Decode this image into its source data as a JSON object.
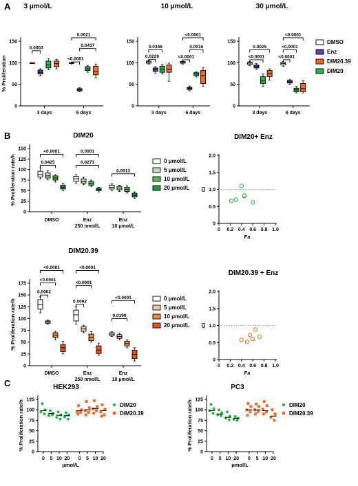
{
  "panel_labels": [
    "A",
    "B",
    "C"
  ],
  "legend_A": [
    {
      "label": "DMSO",
      "color": "#ffffff"
    },
    {
      "label": "Enz",
      "color": "#6a3fa6"
    },
    {
      "label": "DIM20.39",
      "color": "#f26b2b"
    },
    {
      "label": "DIM20",
      "color": "#2bb34b"
    }
  ],
  "legend_B1": [
    {
      "label": "0 μmol/L",
      "color": "#ffffff"
    },
    {
      "label": "5 μmol/L",
      "color": "#b7e4b2"
    },
    {
      "label": "10 μmol/L",
      "color": "#58b957"
    },
    {
      "label": "20 μmol/L",
      "color": "#1a9c3a"
    }
  ],
  "legend_B2": [
    {
      "label": "0 μmol/L",
      "color": "#ffffff"
    },
    {
      "label": "5 μmol/L",
      "color": "#f8c7a6"
    },
    {
      "label": "10 μmol/L",
      "color": "#f08a3c"
    },
    {
      "label": "20 μmol/L",
      "color": "#e8541c"
    }
  ],
  "legend_C": [
    {
      "label": "DIM20",
      "color": "#2bb34b"
    },
    {
      "label": "DIM20.39",
      "color": "#f26b2b"
    }
  ],
  "chart_data": [
    {
      "id": "A1",
      "type": "box",
      "title": "3 μmol/L",
      "ylabel": "% Proliferation",
      "ylim": [
        0,
        150
      ],
      "yticks": [
        0,
        50,
        100,
        150
      ],
      "categories": [
        "3 days",
        "6 days"
      ],
      "series": [
        "DMSO",
        "Enz",
        "DIM20",
        "DIM20.39"
      ],
      "boxes": [
        {
          "g": 0,
          "s": 0,
          "min": 100,
          "q1": 100,
          "med": 100,
          "q3": 100,
          "max": 100
        },
        {
          "g": 0,
          "s": 1,
          "min": 70,
          "q1": 74,
          "med": 78,
          "q3": 83,
          "max": 86
        },
        {
          "g": 0,
          "s": 2,
          "min": 84,
          "q1": 88,
          "med": 95,
          "q3": 104,
          "max": 109
        },
        {
          "g": 0,
          "s": 3,
          "min": 86,
          "q1": 91,
          "med": 98,
          "q3": 104,
          "max": 108
        },
        {
          "g": 1,
          "s": 0,
          "min": 100,
          "q1": 100,
          "med": 100,
          "q3": 100,
          "max": 100
        },
        {
          "g": 1,
          "s": 1,
          "min": 33,
          "q1": 35,
          "med": 38,
          "q3": 40,
          "max": 42
        },
        {
          "g": 1,
          "s": 2,
          "min": 78,
          "q1": 82,
          "med": 86,
          "q3": 91,
          "max": 94
        },
        {
          "g": 1,
          "s": 3,
          "min": 65,
          "q1": 72,
          "med": 80,
          "q3": 92,
          "max": 97
        }
      ],
      "brackets": [
        {
          "x1": 0,
          "x2": 1,
          "y": 128,
          "label": "0.0003"
        },
        {
          "x1": 4,
          "x2": 5,
          "y": 102,
          "label": "<0.0001"
        },
        {
          "x1": 5,
          "x2": 7,
          "y": 133,
          "label": "0.0437"
        },
        {
          "x1": 4,
          "x2": 7,
          "y": 158,
          "label": "0.0021"
        }
      ]
    },
    {
      "id": "A2",
      "type": "box",
      "title": "10 μmol/L",
      "ylabel": "",
      "ylim": [
        0,
        150
      ],
      "yticks": [
        0,
        50,
        100,
        150
      ],
      "categories": [
        "3 days",
        "6 days"
      ],
      "series": [
        "DMSO",
        "Enz",
        "DIM20",
        "DIM20.39"
      ],
      "boxes": [
        {
          "g": 0,
          "s": 0,
          "min": 97,
          "q1": 99,
          "med": 102,
          "q3": 104,
          "max": 106
        },
        {
          "g": 0,
          "s": 1,
          "min": 76,
          "q1": 80,
          "med": 85,
          "q3": 88,
          "max": 91
        },
        {
          "g": 0,
          "s": 2,
          "min": 74,
          "q1": 78,
          "med": 85,
          "q3": 92,
          "max": 96
        },
        {
          "g": 0,
          "s": 3,
          "min": 57,
          "q1": 78,
          "med": 85,
          "q3": 95,
          "max": 99
        },
        {
          "g": 1,
          "s": 0,
          "min": 97,
          "q1": 99,
          "med": 101,
          "q3": 103,
          "max": 104
        },
        {
          "g": 1,
          "s": 1,
          "min": 35,
          "q1": 38,
          "med": 41,
          "q3": 43,
          "max": 46
        },
        {
          "g": 1,
          "s": 2,
          "min": 67,
          "q1": 70,
          "med": 74,
          "q3": 77,
          "max": 79
        },
        {
          "g": 1,
          "s": 3,
          "min": 45,
          "q1": 52,
          "med": 70,
          "q3": 82,
          "max": 88
        }
      ],
      "brackets": [
        {
          "x1": 0,
          "x2": 1,
          "y": 108,
          "label": "0.0229"
        },
        {
          "x1": 0,
          "x2": 2,
          "y": 130,
          "label": "0.0346"
        },
        {
          "x1": 4,
          "x2": 5,
          "y": 107,
          "label": "<0.0001"
        },
        {
          "x1": 5,
          "x2": 7,
          "y": 130,
          "label": "0.0016"
        },
        {
          "x1": 4,
          "x2": 7,
          "y": 158,
          "label": "<0.0001"
        }
      ]
    },
    {
      "id": "A3",
      "type": "box",
      "title": "30 μmol/L",
      "ylabel": "",
      "ylim": [
        0,
        150
      ],
      "yticks": [
        0,
        50,
        100,
        150
      ],
      "categories": [
        "3 days",
        "6 days"
      ],
      "series": [
        "DMSO",
        "Enz",
        "DIM20",
        "DIM20.39"
      ],
      "boxes": [
        {
          "g": 0,
          "s": 0,
          "min": 93,
          "q1": 96,
          "med": 99,
          "q3": 101,
          "max": 103
        },
        {
          "g": 0,
          "s": 1,
          "min": 85,
          "q1": 88,
          "med": 92,
          "q3": 95,
          "max": 98
        },
        {
          "g": 0,
          "s": 2,
          "min": 45,
          "q1": 52,
          "med": 58,
          "q3": 68,
          "max": 74
        },
        {
          "g": 0,
          "s": 3,
          "min": 60,
          "q1": 68,
          "med": 75,
          "q3": 82,
          "max": 86
        },
        {
          "g": 1,
          "s": 0,
          "min": 92,
          "q1": 95,
          "med": 98,
          "q3": 101,
          "max": 103
        },
        {
          "g": 1,
          "s": 1,
          "min": 50,
          "q1": 53,
          "med": 56,
          "q3": 59,
          "max": 61
        },
        {
          "g": 1,
          "s": 2,
          "min": 30,
          "q1": 33,
          "med": 37,
          "q3": 41,
          "max": 45
        },
        {
          "g": 1,
          "s": 3,
          "min": 30,
          "q1": 33,
          "med": 40,
          "q3": 52,
          "max": 58
        }
      ],
      "brackets": [
        {
          "x1": 0,
          "x2": 2,
          "y": 107,
          "label": "<0.0001"
        },
        {
          "x1": 0,
          "x2": 3,
          "y": 130,
          "label": "0.0025"
        },
        {
          "x1": 4,
          "x2": 5,
          "y": 107,
          "label": "<0.0001"
        },
        {
          "x1": 4,
          "x2": 6,
          "y": 130,
          "label": "<0.0001"
        },
        {
          "x1": 4,
          "x2": 7,
          "y": 158,
          "label": "<0.0001"
        }
      ]
    },
    {
      "id": "B1",
      "type": "box",
      "title": "DIM20",
      "ylabel": "% Proliferation rate/h",
      "ylim": [
        0,
        150
      ],
      "yticks": [
        0,
        25,
        50,
        75,
        100,
        125,
        150
      ],
      "categories": [
        "DMSO",
        "Enz\n250 nmol/L",
        "Enz\n10 μmol/L"
      ],
      "series": [
        "0 μmol/L",
        "5 μmol/L",
        "10 μmol/L",
        "20 μmol/L"
      ],
      "boxes": [
        {
          "g": 0,
          "s": 0,
          "min": 78,
          "q1": 82,
          "med": 88,
          "q3": 96,
          "max": 104
        },
        {
          "g": 0,
          "s": 1,
          "min": 76,
          "q1": 80,
          "med": 85,
          "q3": 92,
          "max": 97
        },
        {
          "g": 0,
          "s": 2,
          "min": 70,
          "q1": 75,
          "med": 80,
          "q3": 85,
          "max": 88
        },
        {
          "g": 0,
          "s": 3,
          "min": 50,
          "q1": 54,
          "med": 58,
          "q3": 63,
          "max": 68
        },
        {
          "g": 1,
          "s": 0,
          "min": 68,
          "q1": 72,
          "med": 78,
          "q3": 84,
          "max": 88
        },
        {
          "g": 1,
          "s": 1,
          "min": 64,
          "q1": 68,
          "med": 72,
          "q3": 78,
          "max": 82
        },
        {
          "g": 1,
          "s": 2,
          "min": 60,
          "q1": 63,
          "med": 67,
          "q3": 72,
          "max": 75
        },
        {
          "g": 1,
          "s": 3,
          "min": 47,
          "q1": 50,
          "med": 53,
          "q3": 56,
          "max": 58
        },
        {
          "g": 2,
          "s": 0,
          "min": 50,
          "q1": 54,
          "med": 58,
          "q3": 63,
          "max": 66
        },
        {
          "g": 2,
          "s": 1,
          "min": 48,
          "q1": 52,
          "med": 56,
          "q3": 60,
          "max": 63
        },
        {
          "g": 2,
          "s": 2,
          "min": 44,
          "q1": 48,
          "med": 53,
          "q3": 58,
          "max": 62
        },
        {
          "g": 2,
          "s": 3,
          "min": 32,
          "q1": 35,
          "med": 39,
          "q3": 44,
          "max": 47
        }
      ],
      "brackets": [
        {
          "x1": 0,
          "x2": 2,
          "y": 110,
          "label": "0.0425"
        },
        {
          "x1": 0,
          "x2": 3,
          "y": 136,
          "label": "<0.0001"
        },
        {
          "x1": 4,
          "x2": 7,
          "y": 110,
          "label": "0.0273"
        },
        {
          "x1": 4,
          "x2": 7,
          "y": 136,
          "label": "0.0001"
        },
        {
          "x1": 8,
          "x2": 11,
          "y": 90,
          "label": "0.0013"
        }
      ]
    },
    {
      "id": "B2",
      "type": "box",
      "title": "DIM20.39",
      "ylabel": "% Proliferation rate/h",
      "ylim": [
        0,
        175
      ],
      "yticks": [
        0,
        25,
        50,
        75,
        100,
        125,
        150,
        175
      ],
      "categories": [
        "DMSO",
        "Enz\n250 nmol/L",
        "Enz\n10 μmol/L"
      ],
      "series": [
        "0 μmol/L",
        "5 μmol/L",
        "10 μmol/L",
        "20 μmol/L"
      ],
      "boxes": [
        {
          "g": 0,
          "s": 0,
          "min": 112,
          "q1": 120,
          "med": 130,
          "q3": 140,
          "max": 146
        },
        {
          "g": 0,
          "s": 1,
          "min": 88,
          "q1": 90,
          "med": 93,
          "q3": 95,
          "max": 97
        },
        {
          "g": 0,
          "s": 2,
          "min": 55,
          "q1": 60,
          "med": 65,
          "q3": 70,
          "max": 73
        },
        {
          "g": 0,
          "s": 3,
          "min": 25,
          "q1": 30,
          "med": 38,
          "q3": 45,
          "max": 52
        },
        {
          "g": 1,
          "s": 0,
          "min": 88,
          "q1": 95,
          "med": 108,
          "q3": 118,
          "max": 125
        },
        {
          "g": 1,
          "s": 1,
          "min": 70,
          "q1": 73,
          "med": 78,
          "q3": 83,
          "max": 86
        },
        {
          "g": 1,
          "s": 2,
          "min": 50,
          "q1": 53,
          "med": 60,
          "q3": 67,
          "max": 72
        },
        {
          "g": 1,
          "s": 3,
          "min": 22,
          "q1": 26,
          "med": 33,
          "q3": 42,
          "max": 48
        },
        {
          "g": 2,
          "s": 0,
          "min": 62,
          "q1": 64,
          "med": 67,
          "q3": 70,
          "max": 72
        },
        {
          "g": 2,
          "s": 1,
          "min": 55,
          "q1": 58,
          "med": 62,
          "q3": 66,
          "max": 69
        },
        {
          "g": 2,
          "s": 2,
          "min": 38,
          "q1": 42,
          "med": 47,
          "q3": 52,
          "max": 55
        },
        {
          "g": 2,
          "s": 3,
          "min": 10,
          "q1": 15,
          "med": 24,
          "q3": 33,
          "max": 38
        }
      ],
      "brackets": [
        {
          "x1": 0,
          "x2": 1,
          "y": 150,
          "label": "0.0002"
        },
        {
          "x1": 0,
          "x2": 2,
          "y": 176,
          "label": "<0.0001"
        },
        {
          "x1": 0,
          "x2": 3,
          "y": 202,
          "label": "<0.0001"
        },
        {
          "x1": 4,
          "x2": 5,
          "y": 130,
          "label": "0.0092"
        },
        {
          "x1": 4,
          "x2": 6,
          "y": 170,
          "label": "<0.0001"
        },
        {
          "x1": 4,
          "x2": 7,
          "y": 202,
          "label": "<0.0001"
        },
        {
          "x1": 8,
          "x2": 10,
          "y": 100,
          "label": "0.0199"
        },
        {
          "x1": 8,
          "x2": 11,
          "y": 138,
          "label": "<0.0001"
        }
      ]
    },
    {
      "id": "B3",
      "type": "scatter",
      "title": "DIM20+ Enz",
      "xlabel": "Fa",
      "ylabel": "CI",
      "xlim": [
        0,
        1.0
      ],
      "ylim": [
        0,
        2.0
      ],
      "xticks": [
        "0",
        "0.2",
        "0.4",
        "0.6",
        "0.8",
        "1.0"
      ],
      "yticks": [
        "0",
        "0.5",
        "1.0",
        "1.5",
        "2.0"
      ],
      "refline": 1.0,
      "color": "#2bb34b",
      "x": [
        0.22,
        0.3,
        0.4,
        0.45,
        0.45,
        0.6
      ],
      "y": [
        0.66,
        0.7,
        1.1,
        0.8,
        0.82,
        0.62
      ]
    },
    {
      "id": "B4",
      "type": "scatter",
      "title": "DIM20.39 + Enz",
      "xlabel": "Fa",
      "ylabel": "CI",
      "xlim": [
        0,
        1.0
      ],
      "ylim": [
        0,
        2.0
      ],
      "xticks": [
        "0",
        "0.2",
        "0.4",
        "0.6",
        "0.8",
        "1.0"
      ],
      "yticks": [
        "0",
        "0.5",
        "1.0",
        "1.5",
        "2.0"
      ],
      "refline": 1.0,
      "color": "#f26b2b",
      "x": [
        0.4,
        0.5,
        0.55,
        0.6,
        0.65,
        0.72
      ],
      "y": [
        0.58,
        0.52,
        0.72,
        0.6,
        0.88,
        0.67
      ]
    },
    {
      "id": "C1",
      "type": "dot",
      "title": "HEK293",
      "xlabel": "μmol/L",
      "ylabel": "% Proliferation rate/h",
      "ylim": [
        0,
        125
      ],
      "yticks": [
        0,
        25,
        50,
        75,
        100,
        125
      ],
      "xticks": [
        "0",
        "5",
        "10",
        "20",
        "0",
        "5",
        "10",
        "20"
      ],
      "groups": [
        {
          "series": "DIM20",
          "color": "#2bb34b",
          "mean": 98,
          "points": [
            115,
            100,
            95,
            90
          ]
        },
        {
          "series": "DIM20",
          "color": "#2bb34b",
          "mean": 91,
          "points": [
            98,
            92,
            86,
            88
          ]
        },
        {
          "series": "DIM20",
          "color": "#2bb34b",
          "mean": 87,
          "points": [
            95,
            88,
            82,
            78
          ]
        },
        {
          "series": "DIM20",
          "color": "#2bb34b",
          "mean": 86,
          "points": [
            93,
            88,
            83,
            78
          ]
        },
        {
          "series": "DIM20.39",
          "color": "#f26b2b",
          "mean": 98,
          "points": [
            110,
            100,
            96,
            94,
            90
          ]
        },
        {
          "series": "DIM20.39",
          "color": "#f26b2b",
          "mean": 100,
          "points": [
            120,
            105,
            98,
            94,
            88
          ]
        },
        {
          "series": "DIM20.39",
          "color": "#f26b2b",
          "mean": 103,
          "points": [
            122,
            108,
            102,
            98,
            92
          ]
        },
        {
          "series": "DIM20.39",
          "color": "#f26b2b",
          "mean": 98,
          "points": [
            112,
            102,
            95,
            88,
            85
          ]
        }
      ]
    },
    {
      "id": "C2",
      "type": "dot",
      "title": "PC3",
      "xlabel": "μmol/L",
      "ylabel": "% Proliferation rate/h",
      "ylim": [
        0,
        125
      ],
      "yticks": [
        0,
        25,
        50,
        75,
        100,
        125
      ],
      "xticks": [
        "0",
        "5",
        "10",
        "20",
        "0",
        "5",
        "10",
        "20"
      ],
      "groups": [
        {
          "series": "DIM20",
          "color": "#2bb34b",
          "mean": 98,
          "points": [
            113,
            103,
            98,
            92
          ]
        },
        {
          "series": "DIM20",
          "color": "#2bb34b",
          "mean": 90,
          "points": [
            100,
            93,
            88,
            86
          ]
        },
        {
          "series": "DIM20",
          "color": "#2bb34b",
          "mean": 82,
          "points": [
            95,
            85,
            80,
            76
          ]
        },
        {
          "series": "DIM20",
          "color": "#2bb34b",
          "mean": 80,
          "points": [
            84,
            80,
            77,
            75
          ]
        },
        {
          "series": "DIM20.39",
          "color": "#f26b2b",
          "mean": 100,
          "points": [
            115,
            108,
            100,
            95,
            87
          ]
        },
        {
          "series": "DIM20.39",
          "color": "#f26b2b",
          "mean": 100,
          "points": [
            114,
            108,
            100,
            96,
            90
          ]
        },
        {
          "series": "DIM20.39",
          "color": "#f26b2b",
          "mean": 98,
          "points": [
            120,
            110,
            102,
            95,
            90
          ]
        },
        {
          "series": "DIM20.39",
          "color": "#f26b2b",
          "mean": 85,
          "points": [
            100,
            90,
            82,
            75
          ]
        }
      ]
    }
  ]
}
